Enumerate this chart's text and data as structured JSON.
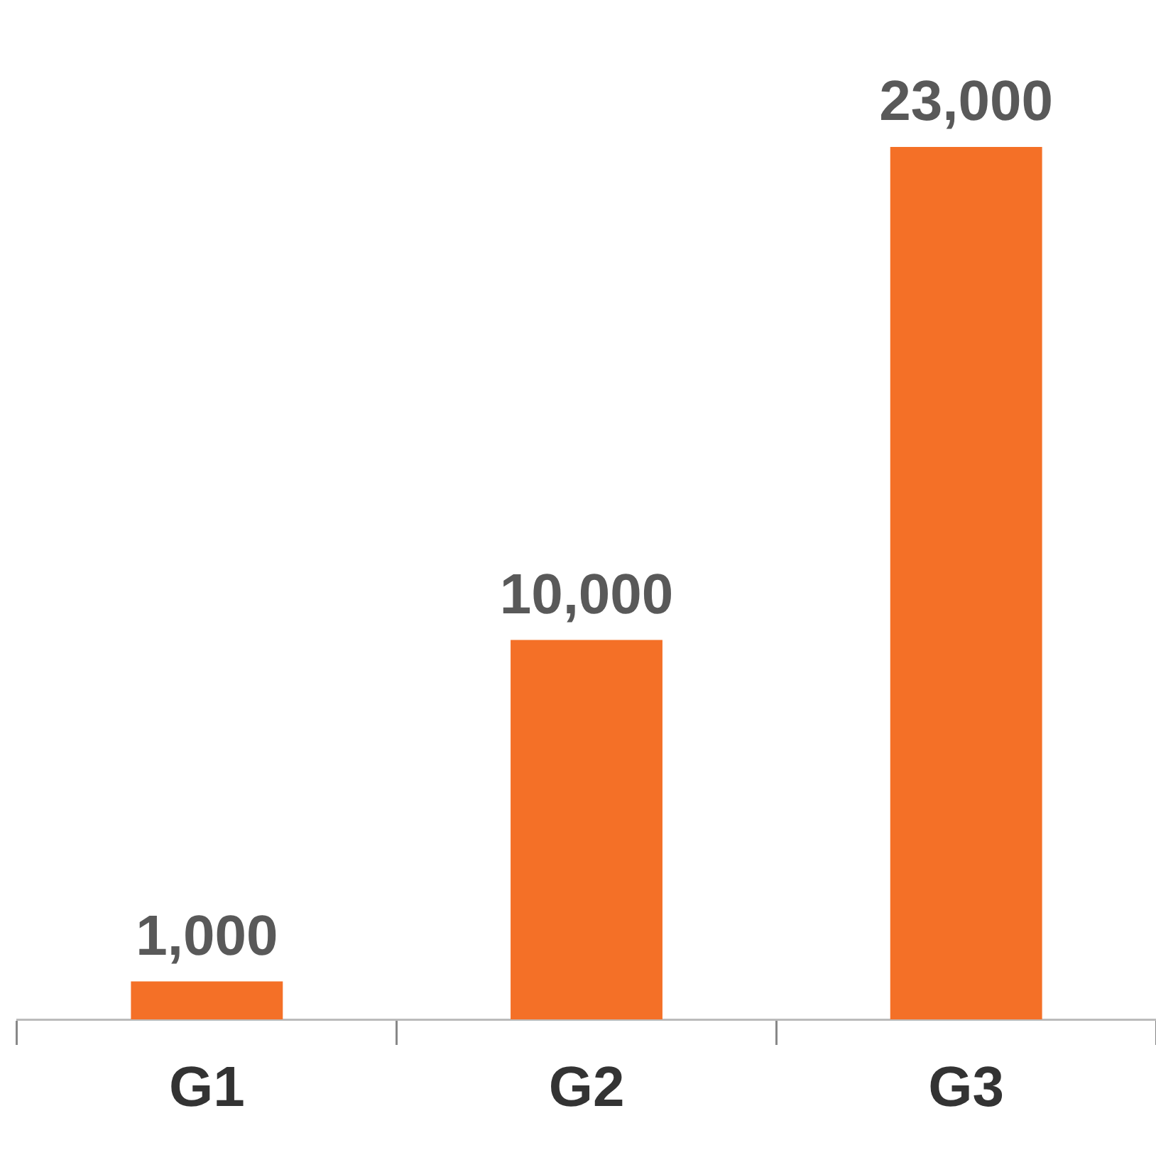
{
  "chart_data": {
    "type": "bar",
    "categories": [
      "G1",
      "G2",
      "G3"
    ],
    "values": [
      1000,
      10000,
      23000
    ],
    "value_labels": [
      "1,000",
      "10,000",
      "23,000"
    ],
    "color": "#f47027",
    "grid": false,
    "legend": false
  }
}
